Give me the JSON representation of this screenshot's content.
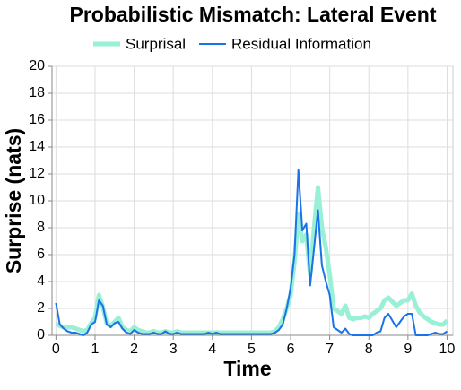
{
  "chart_data": {
    "type": "line",
    "title": "Probabilistic Mismatch: Lateral Event",
    "x_label": "Time",
    "y_label": "Surprise (nats)",
    "x": [
      0,
      0.1,
      0.2,
      0.3,
      0.4,
      0.5,
      0.6,
      0.7,
      0.8,
      0.9,
      1,
      1.1,
      1.2,
      1.3,
      1.4,
      1.5,
      1.6,
      1.7,
      1.8,
      1.9,
      2,
      2.1,
      2.2,
      2.3,
      2.4,
      2.5,
      2.6,
      2.7,
      2.8,
      2.9,
      3,
      3.1,
      3.2,
      3.3,
      3.4,
      3.5,
      3.6,
      3.7,
      3.8,
      3.9,
      4,
      4.1,
      4.2,
      4.3,
      4.4,
      4.5,
      4.6,
      4.7,
      4.8,
      4.9,
      5,
      5.1,
      5.2,
      5.3,
      5.4,
      5.5,
      5.6,
      5.7,
      5.8,
      5.9,
      6,
      6.1,
      6.2,
      6.3,
      6.4,
      6.5,
      6.6,
      6.7,
      6.8,
      6.9,
      7,
      7.1,
      7.2,
      7.3,
      7.4,
      7.5,
      7.6,
      7.7,
      7.8,
      7.9,
      8,
      8.1,
      8.2,
      8.3,
      8.4,
      8.5,
      8.6,
      8.7,
      8.8,
      8.9,
      9,
      9.1,
      9.2,
      9.3,
      9.4,
      9.5,
      9.6,
      9.7,
      9.8,
      9.9,
      10
    ],
    "series": [
      {
        "name": "Surprisal",
        "color": "#99f0d6",
        "width": 5,
        "values": [
          0.9,
          0.7,
          0.6,
          0.6,
          0.6,
          0.5,
          0.4,
          0.3,
          0.4,
          0.9,
          1.3,
          3.0,
          2.1,
          0.9,
          0.7,
          1.0,
          1.3,
          0.6,
          0.4,
          0.3,
          0.6,
          0.4,
          0.3,
          0.2,
          0.2,
          0.3,
          0.2,
          0.2,
          0.3,
          0.2,
          0.2,
          0.3,
          0.2,
          0.2,
          0.2,
          0.2,
          0.2,
          0.2,
          0.2,
          0.2,
          0.2,
          0.2,
          0.2,
          0.2,
          0.2,
          0.2,
          0.2,
          0.2,
          0.2,
          0.2,
          0.2,
          0.2,
          0.2,
          0.2,
          0.2,
          0.2,
          0.3,
          0.6,
          1.2,
          2.0,
          3.0,
          5.5,
          9.0,
          7.0,
          7.5,
          4.5,
          8.0,
          11.0,
          8.0,
          6.5,
          4.5,
          2.0,
          1.8,
          1.6,
          2.2,
          1.3,
          1.2,
          1.3,
          1.3,
          1.4,
          1.3,
          1.6,
          1.8,
          2.0,
          2.6,
          2.8,
          2.5,
          2.2,
          2.4,
          2.6,
          2.6,
          3.1,
          2.2,
          1.7,
          1.4,
          1.2,
          1.0,
          0.9,
          0.8,
          0.8,
          1.1
        ]
      },
      {
        "name": "Residual Information",
        "color": "#1a73e8",
        "width": 2,
        "values": [
          2.4,
          0.8,
          0.5,
          0.3,
          0.2,
          0.2,
          0.1,
          0.0,
          0.2,
          0.8,
          1.0,
          2.6,
          2.2,
          0.8,
          0.6,
          0.9,
          1.0,
          0.5,
          0.2,
          0.1,
          0.4,
          0.2,
          0.1,
          0.1,
          0.1,
          0.2,
          0.1,
          0.1,
          0.3,
          0.1,
          0.1,
          0.2,
          0.1,
          0.1,
          0.1,
          0.1,
          0.1,
          0.1,
          0.1,
          0.2,
          0.1,
          0.2,
          0.1,
          0.1,
          0.1,
          0.1,
          0.1,
          0.1,
          0.1,
          0.1,
          0.1,
          0.1,
          0.1,
          0.1,
          0.1,
          0.1,
          0.2,
          0.4,
          0.8,
          2.0,
          3.5,
          6.0,
          12.3,
          7.8,
          8.3,
          3.7,
          6.5,
          9.3,
          5.2,
          4.0,
          3.0,
          0.6,
          0.4,
          0.2,
          0.5,
          0.1,
          0.0,
          0.0,
          0.0,
          0.0,
          0.0,
          0.0,
          0.2,
          0.3,
          1.3,
          1.6,
          1.1,
          0.6,
          1.0,
          1.4,
          1.6,
          1.6,
          0.0,
          0.0,
          0.0,
          0.0,
          0.1,
          0.2,
          0.1,
          0.1,
          0.3
        ]
      }
    ],
    "xlim": [
      -0.1,
      10.15
    ],
    "ylim": [
      0,
      20
    ],
    "xticks": [
      0,
      1,
      2,
      3,
      4,
      5,
      6,
      7,
      8,
      9,
      10
    ],
    "yticks": [
      0,
      2,
      4,
      6,
      8,
      10,
      12,
      14,
      16,
      18,
      20
    ],
    "grid": true
  }
}
